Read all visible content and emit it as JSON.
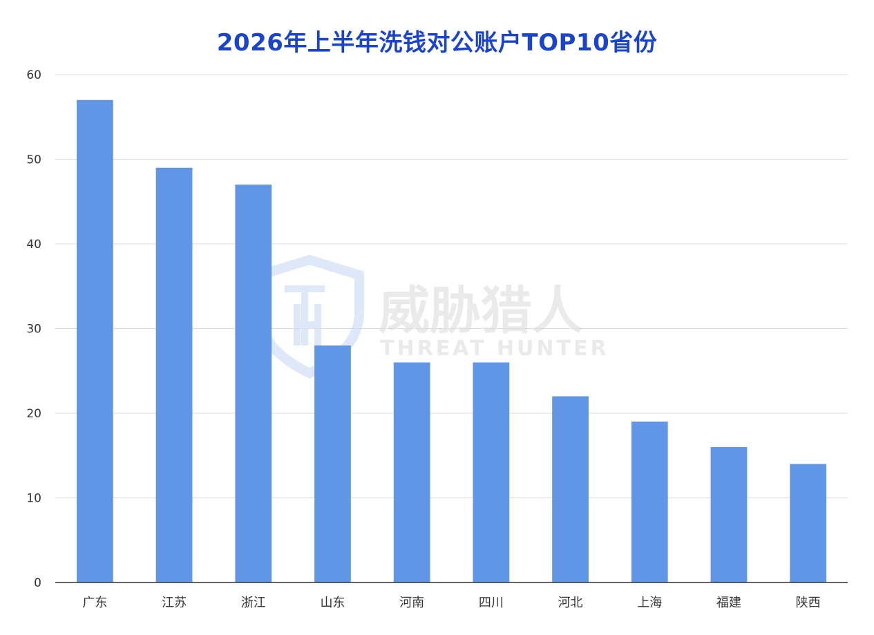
{
  "chart_data": {
    "type": "bar",
    "title": "2026年上半年洗钱对公账户TOP10省份",
    "xlabel": "",
    "ylabel": "",
    "categories": [
      "广东",
      "江苏",
      "浙江",
      "山东",
      "河南",
      "四川",
      "河北",
      "上海",
      "福建",
      "陕西"
    ],
    "values": [
      57,
      49,
      47,
      28,
      26,
      26,
      22,
      19,
      16,
      14
    ],
    "ylim": [
      0,
      60
    ],
    "yticks": [
      0,
      10,
      20,
      30,
      40,
      50,
      60
    ],
    "grid": true,
    "legend": "none",
    "bar_color": "#6196e6",
    "title_color": "#1a44cc",
    "grid_color": "#dddddd"
  },
  "watermark": {
    "logo": "shield-logo",
    "text_cn": "威胁猎人",
    "text_en": "THREAT HUNTER"
  }
}
